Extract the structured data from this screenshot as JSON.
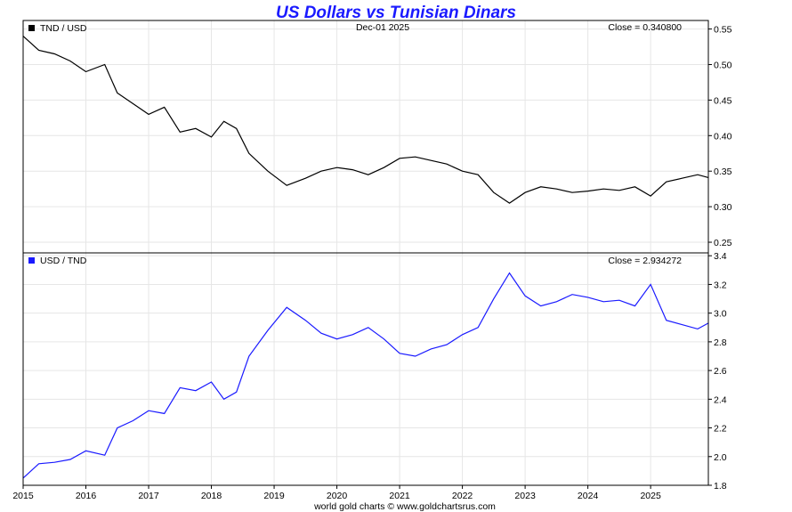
{
  "chart_data": {
    "type": "line",
    "title": "US Dollars vs Tunisian Dinars",
    "date_label": "Dec-01  2025",
    "footer": "world gold charts © www.goldchartsrus.com",
    "x_tick_labels": [
      "2015",
      "2016",
      "2017",
      "2018",
      "2019",
      "2020",
      "2021",
      "2022",
      "2023",
      "2024",
      "2025"
    ],
    "xlim": [
      2015.0,
      2025.92
    ],
    "grid": true,
    "panels": [
      {
        "series_name": "TND / USD",
        "close_label": "Close = 0.340800",
        "color": "#000000",
        "ylim": [
          0.235,
          0.562
        ],
        "y_ticks": [
          0.25,
          0.3,
          0.35,
          0.4,
          0.45,
          0.5,
          0.55
        ],
        "y_tick_labels": [
          "0.25",
          "0.30",
          "0.35",
          "0.40",
          "0.45",
          "0.50",
          "0.55"
        ],
        "x": [
          2015.0,
          2015.25,
          2015.5,
          2015.75,
          2016.0,
          2016.3,
          2016.5,
          2016.75,
          2017.0,
          2017.25,
          2017.5,
          2017.75,
          2018.0,
          2018.2,
          2018.4,
          2018.6,
          2018.9,
          2019.2,
          2019.5,
          2019.75,
          2020.0,
          2020.25,
          2020.5,
          2020.75,
          2021.0,
          2021.25,
          2021.5,
          2021.75,
          2022.0,
          2022.25,
          2022.5,
          2022.75,
          2023.0,
          2023.25,
          2023.5,
          2023.75,
          2024.0,
          2024.25,
          2024.5,
          2024.75,
          2025.0,
          2025.25,
          2025.5,
          2025.75,
          2025.92
        ],
        "values": [
          0.54,
          0.52,
          0.515,
          0.505,
          0.49,
          0.5,
          0.46,
          0.445,
          0.43,
          0.44,
          0.405,
          0.41,
          0.398,
          0.42,
          0.41,
          0.375,
          0.35,
          0.33,
          0.34,
          0.35,
          0.355,
          0.352,
          0.345,
          0.355,
          0.368,
          0.37,
          0.365,
          0.36,
          0.35,
          0.345,
          0.32,
          0.305,
          0.32,
          0.328,
          0.325,
          0.32,
          0.322,
          0.325,
          0.323,
          0.328,
          0.315,
          0.335,
          0.34,
          0.345,
          0.341
        ]
      },
      {
        "series_name": "USD / TND",
        "close_label": "Close = 2.934272",
        "color": "#1a1aff",
        "ylim": [
          1.8,
          3.42
        ],
        "y_ticks": [
          1.8,
          2.0,
          2.2,
          2.4,
          2.6,
          2.8,
          3.0,
          3.2,
          3.4
        ],
        "y_tick_labels": [
          "1.8",
          "2.0",
          "2.2",
          "2.4",
          "2.6",
          "2.8",
          "3.0",
          "3.2",
          "3.4"
        ],
        "x": [
          2015.0,
          2015.25,
          2015.5,
          2015.75,
          2016.0,
          2016.3,
          2016.5,
          2016.75,
          2017.0,
          2017.25,
          2017.5,
          2017.75,
          2018.0,
          2018.2,
          2018.4,
          2018.6,
          2018.9,
          2019.2,
          2019.5,
          2019.75,
          2020.0,
          2020.25,
          2020.5,
          2020.75,
          2021.0,
          2021.25,
          2021.5,
          2021.75,
          2022.0,
          2022.25,
          2022.5,
          2022.75,
          2023.0,
          2023.25,
          2023.5,
          2023.75,
          2024.0,
          2024.25,
          2024.5,
          2024.75,
          2025.0,
          2025.25,
          2025.5,
          2025.75,
          2025.92
        ],
        "values": [
          1.85,
          1.95,
          1.96,
          1.98,
          2.04,
          2.01,
          2.2,
          2.25,
          2.32,
          2.3,
          2.48,
          2.46,
          2.52,
          2.4,
          2.45,
          2.7,
          2.88,
          3.04,
          2.95,
          2.86,
          2.82,
          2.85,
          2.9,
          2.82,
          2.72,
          2.7,
          2.75,
          2.78,
          2.85,
          2.9,
          3.1,
          3.28,
          3.12,
          3.05,
          3.08,
          3.13,
          3.11,
          3.08,
          3.09,
          3.05,
          3.2,
          2.95,
          2.92,
          2.89,
          2.93
        ]
      }
    ]
  }
}
